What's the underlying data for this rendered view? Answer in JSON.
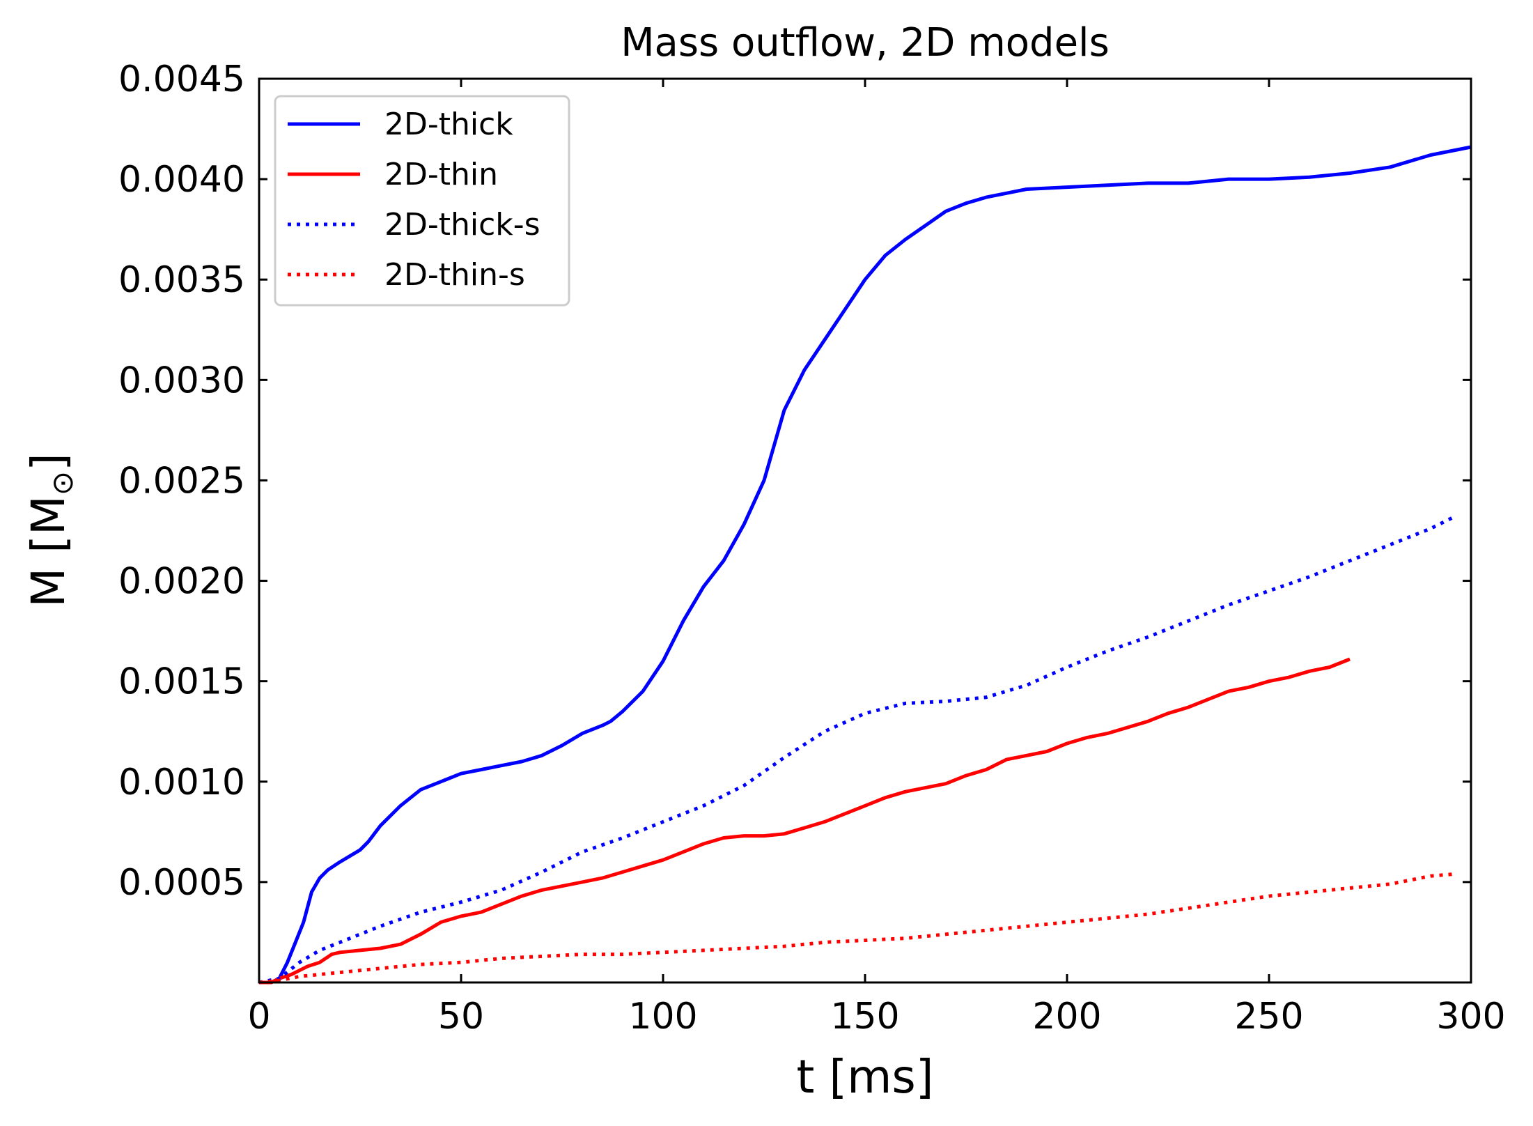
{
  "chart_data": {
    "type": "line",
    "title": "Mass outflow, 2D models",
    "xlabel": "t [ms]",
    "ylabel": "M [M",
    "ylabel_symbol": "⊙",
    "ylabel_close": "]",
    "xlim": [
      0,
      300
    ],
    "ylim": [
      0,
      0.0045
    ],
    "xticks": [
      "0",
      "50",
      "100",
      "150",
      "200",
      "250",
      "300"
    ],
    "xtick_values": [
      0,
      50,
      100,
      150,
      200,
      250,
      300
    ],
    "yticks": [
      "0.0005",
      "0.0010",
      "0.0015",
      "0.0020",
      "0.0025",
      "0.0030",
      "0.0035",
      "0.0040",
      "0.0045"
    ],
    "ytick_values": [
      0.0005,
      0.001,
      0.0015,
      0.002,
      0.0025,
      0.003,
      0.0035,
      0.004,
      0.0045
    ],
    "grid": false,
    "legend_position": "top-left",
    "series": [
      {
        "name": "2D-thick",
        "color": "#0000ff",
        "style": "solid",
        "x": [
          0,
          3,
          5,
          7,
          9,
          11,
          13,
          15,
          17,
          20,
          25,
          27,
          30,
          35,
          40,
          45,
          50,
          55,
          60,
          65,
          70,
          75,
          80,
          85,
          87,
          90,
          95,
          100,
          105,
          110,
          115,
          120,
          125,
          130,
          135,
          140,
          145,
          150,
          155,
          160,
          165,
          170,
          175,
          180,
          185,
          190,
          200,
          210,
          220,
          230,
          240,
          250,
          260,
          270,
          280,
          290,
          300
        ],
        "y": [
          0,
          0,
          2e-05,
          0.0001,
          0.0002,
          0.0003,
          0.00045,
          0.00052,
          0.00056,
          0.0006,
          0.00066,
          0.0007,
          0.00078,
          0.00088,
          0.00096,
          0.001,
          0.00104,
          0.00106,
          0.00108,
          0.0011,
          0.00113,
          0.00118,
          0.00124,
          0.00128,
          0.0013,
          0.00135,
          0.00145,
          0.0016,
          0.0018,
          0.00197,
          0.0021,
          0.00228,
          0.0025,
          0.00285,
          0.00305,
          0.0032,
          0.00335,
          0.0035,
          0.00362,
          0.0037,
          0.00377,
          0.00384,
          0.00388,
          0.00391,
          0.00393,
          0.00395,
          0.00396,
          0.00397,
          0.00398,
          0.00398,
          0.004,
          0.004,
          0.00401,
          0.00403,
          0.00406,
          0.00412,
          0.00416
        ]
      },
      {
        "name": "2D-thin",
        "color": "#ff0000",
        "style": "solid",
        "x": [
          0,
          3,
          5,
          8,
          10,
          12,
          15,
          18,
          20,
          25,
          30,
          35,
          40,
          45,
          50,
          55,
          60,
          65,
          70,
          75,
          80,
          85,
          90,
          95,
          100,
          105,
          110,
          115,
          120,
          125,
          130,
          135,
          140,
          145,
          150,
          155,
          160,
          165,
          170,
          175,
          180,
          185,
          190,
          195,
          200,
          205,
          210,
          215,
          220,
          225,
          230,
          235,
          240,
          245,
          250,
          255,
          260,
          265,
          270
        ],
        "y": [
          0,
          0,
          2e-05,
          4e-05,
          6e-05,
          8e-05,
          0.0001,
          0.00014,
          0.00015,
          0.00016,
          0.00017,
          0.00019,
          0.00024,
          0.0003,
          0.00033,
          0.00035,
          0.00039,
          0.00043,
          0.00046,
          0.00048,
          0.0005,
          0.00052,
          0.00055,
          0.00058,
          0.00061,
          0.00065,
          0.00069,
          0.00072,
          0.00073,
          0.00073,
          0.00074,
          0.00077,
          0.0008,
          0.00084,
          0.00088,
          0.00092,
          0.00095,
          0.00097,
          0.00099,
          0.00103,
          0.00106,
          0.00111,
          0.00113,
          0.00115,
          0.00119,
          0.00122,
          0.00124,
          0.00127,
          0.0013,
          0.00134,
          0.00137,
          0.00141,
          0.00145,
          0.00147,
          0.0015,
          0.00152,
          0.00155,
          0.00157,
          0.00161
        ]
      },
      {
        "name": "2D-thick-s",
        "color": "#0000ff",
        "style": "dotted",
        "x": [
          0,
          5,
          10,
          15,
          20,
          30,
          40,
          50,
          60,
          70,
          80,
          90,
          100,
          110,
          120,
          130,
          140,
          150,
          160,
          170,
          180,
          190,
          200,
          210,
          220,
          230,
          240,
          250,
          260,
          270,
          280,
          290,
          296
        ],
        "y": [
          0,
          2e-05,
          0.0001,
          0.00016,
          0.0002,
          0.00028,
          0.00035,
          0.0004,
          0.00046,
          0.00055,
          0.00065,
          0.00072,
          0.0008,
          0.00088,
          0.00098,
          0.00112,
          0.00125,
          0.00134,
          0.00139,
          0.0014,
          0.00142,
          0.00148,
          0.00157,
          0.00165,
          0.00172,
          0.0018,
          0.00188,
          0.00195,
          0.00202,
          0.0021,
          0.00218,
          0.00226,
          0.00232
        ]
      },
      {
        "name": "2D-thin-s",
        "color": "#ff0000",
        "style": "dotted",
        "x": [
          0,
          5,
          10,
          20,
          30,
          40,
          50,
          60,
          70,
          80,
          90,
          100,
          110,
          120,
          130,
          140,
          150,
          160,
          170,
          180,
          190,
          200,
          210,
          220,
          230,
          240,
          250,
          260,
          270,
          280,
          290,
          296
        ],
        "y": [
          0,
          1e-05,
          3e-05,
          5e-05,
          7e-05,
          9e-05,
          0.0001,
          0.00012,
          0.00013,
          0.00014,
          0.00014,
          0.00015,
          0.00016,
          0.00017,
          0.00018,
          0.0002,
          0.00021,
          0.00022,
          0.00024,
          0.00026,
          0.00028,
          0.0003,
          0.00032,
          0.00034,
          0.00037,
          0.0004,
          0.00043,
          0.00045,
          0.00047,
          0.00049,
          0.00053,
          0.00054
        ]
      }
    ]
  }
}
